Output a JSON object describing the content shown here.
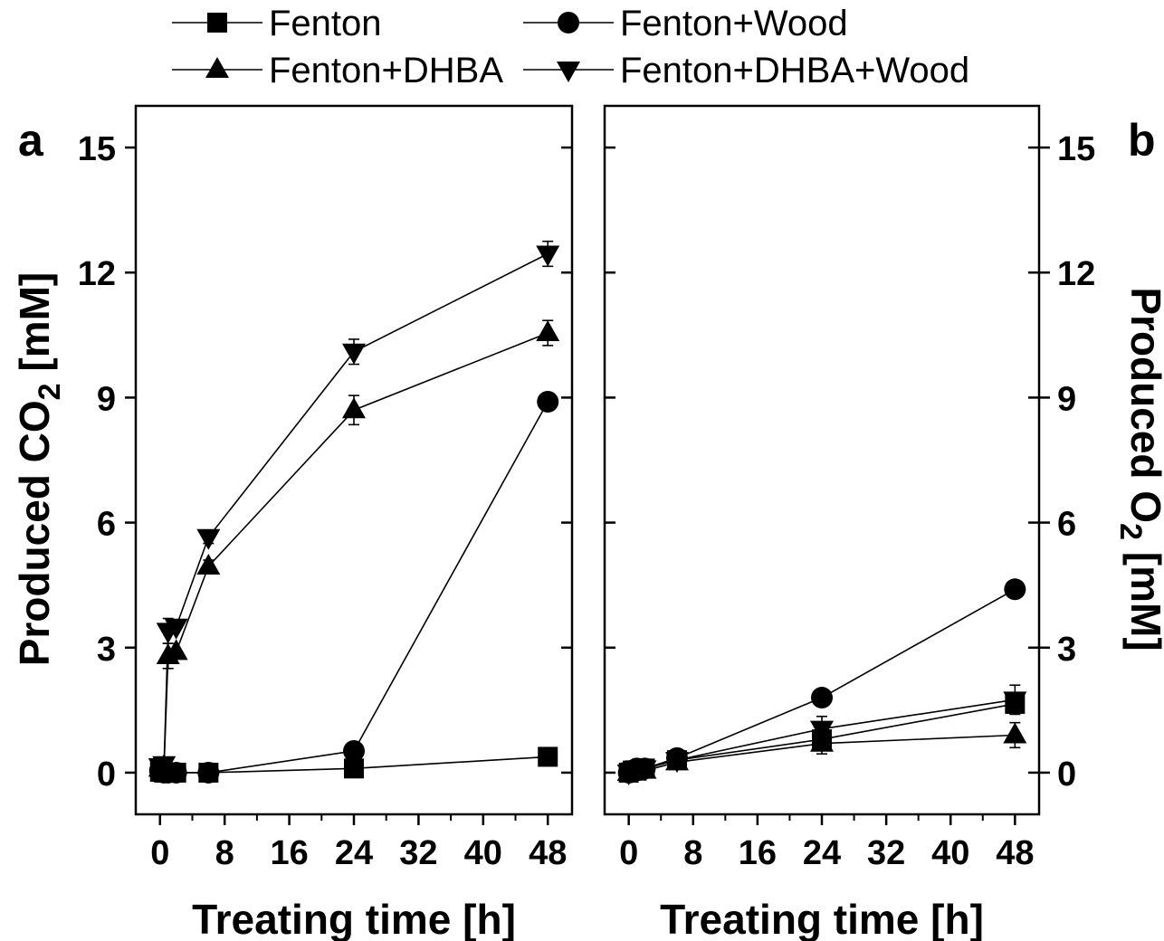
{
  "legend": [
    {
      "name": "Fenton",
      "marker": "square"
    },
    {
      "name": "Fenton+Wood",
      "marker": "circle"
    },
    {
      "name": "Fenton+DHBA",
      "marker": "triangle-up"
    },
    {
      "name": "Fenton+DHBA+Wood",
      "marker": "triangle-down"
    }
  ],
  "chart_data": [
    {
      "type": "line",
      "panel_label": "a",
      "xlabel": "Treating time [h]",
      "ylabel_parts": [
        "Produced CO",
        "2",
        " [mM]"
      ],
      "xlim": [
        -3,
        51
      ],
      "ylim": [
        -1,
        16
      ],
      "xticks": [
        0,
        8,
        16,
        24,
        32,
        40,
        48
      ],
      "yticks": [
        0,
        3,
        6,
        9,
        12,
        15
      ],
      "yaxis_side": "left",
      "grid": false,
      "series": [
        {
          "name": "Fenton",
          "marker": "square",
          "x": [
            0,
            0.5,
            1,
            2,
            6,
            24,
            48
          ],
          "y": [
            0.02,
            0.0,
            0.0,
            0.0,
            0.0,
            0.1,
            0.38
          ],
          "err": [
            0,
            0,
            0,
            0,
            0,
            0,
            0
          ]
        },
        {
          "name": "Fenton+Wood",
          "marker": "circle",
          "x": [
            0,
            0.5,
            1,
            2,
            6,
            24,
            48
          ],
          "y": [
            0.05,
            0.0,
            0.0,
            0.0,
            0.0,
            0.52,
            8.9
          ],
          "err": [
            0,
            0,
            0,
            0,
            0,
            0,
            0
          ]
        },
        {
          "name": "Fenton+DHBA",
          "marker": "triangle-up",
          "x": [
            0,
            0.5,
            1,
            2,
            6,
            24,
            48
          ],
          "y": [
            0.1,
            0.15,
            2.8,
            2.9,
            4.95,
            8.7,
            10.55
          ],
          "err": [
            0,
            0,
            0.3,
            0,
            0.15,
            0.35,
            0.3
          ]
        },
        {
          "name": "Fenton+DHBA+Wood",
          "marker": "triangle-down",
          "x": [
            0,
            0.5,
            1,
            2,
            6,
            24,
            48
          ],
          "y": [
            0.15,
            0.2,
            3.4,
            3.5,
            5.65,
            10.1,
            12.45
          ],
          "err": [
            0,
            0,
            0.3,
            0,
            0.15,
            0.3,
            0.3
          ]
        }
      ]
    },
    {
      "type": "line",
      "panel_label": "b",
      "xlabel": "Treating time [h]",
      "ylabel_parts": [
        "Produced O",
        "2",
        " [mM]"
      ],
      "xlim": [
        -3,
        51
      ],
      "ylim": [
        -1,
        16
      ],
      "xticks": [
        0,
        8,
        16,
        24,
        32,
        40,
        48
      ],
      "yticks": [
        0,
        3,
        6,
        9,
        12,
        15
      ],
      "yaxis_side": "right",
      "grid": false,
      "series": [
        {
          "name": "Fenton",
          "marker": "square",
          "x": [
            0,
            0.5,
            1,
            2,
            6,
            24,
            48
          ],
          "y": [
            0.0,
            0.05,
            0.05,
            0.1,
            0.3,
            0.8,
            1.65
          ],
          "err": [
            0,
            0,
            0,
            0,
            0,
            0,
            0
          ]
        },
        {
          "name": "Fenton+Wood",
          "marker": "circle",
          "x": [
            0,
            0.5,
            1,
            2,
            6,
            24,
            48
          ],
          "y": [
            0.0,
            0.05,
            0.1,
            0.1,
            0.35,
            1.8,
            4.4
          ],
          "err": [
            0,
            0,
            0,
            0,
            0,
            0,
            0
          ]
        },
        {
          "name": "Fenton+DHBA",
          "marker": "triangle-up",
          "x": [
            0,
            0.5,
            1,
            2,
            6,
            24,
            48
          ],
          "y": [
            0.0,
            0.05,
            0.05,
            0.05,
            0.25,
            0.7,
            0.9
          ],
          "err": [
            0.15,
            0,
            0,
            0.15,
            0.1,
            0.25,
            0.3
          ]
        },
        {
          "name": "Fenton+DHBA+Wood",
          "marker": "triangle-down",
          "x": [
            0,
            0.5,
            1,
            2,
            6,
            24,
            48
          ],
          "y": [
            0.0,
            0.05,
            0.1,
            0.1,
            0.3,
            1.05,
            1.75
          ],
          "err": [
            0.15,
            0,
            0,
            0.15,
            0.1,
            0.3,
            0.35
          ]
        }
      ]
    }
  ]
}
